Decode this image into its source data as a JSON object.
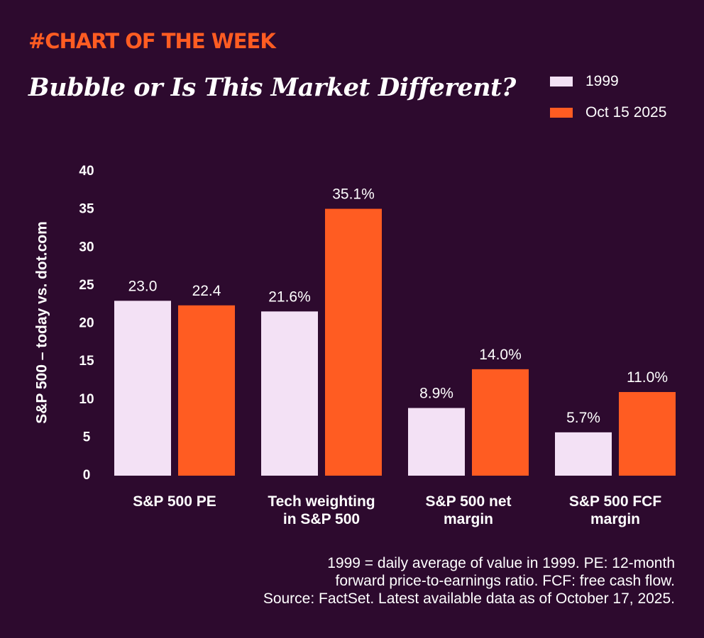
{
  "header": {
    "kicker": "#CHART OF THE WEEK"
  },
  "colors": {
    "background": "#2d0a2e",
    "series_1999": "#f3e1f5",
    "series_2025": "#ff5c22",
    "kicker": "#ff5c22"
  },
  "chart_data": {
    "type": "bar",
    "title": "Bubble or Is This Market Different?",
    "ylabel": "S&P 500 – today vs. dot.com",
    "xlabel": "",
    "ylim": [
      0,
      40
    ],
    "yticks": [
      0,
      5,
      10,
      15,
      20,
      25,
      30,
      35,
      40
    ],
    "grid": false,
    "legend_position": "top-right",
    "categories": [
      [
        "S&P 500 PE"
      ],
      [
        "Tech weighting",
        "in S&P 500"
      ],
      [
        "S&P 500 net",
        "margin"
      ],
      [
        "S&P 500 FCF",
        "margin"
      ]
    ],
    "series": [
      {
        "name": "1999",
        "color": "#f3e1f5",
        "values": [
          23.0,
          21.6,
          8.9,
          5.7
        ],
        "labels": [
          "23.0",
          "21.6%",
          "8.9%",
          "5.7%"
        ]
      },
      {
        "name": "Oct 15 2025",
        "color": "#ff5c22",
        "values": [
          22.4,
          35.1,
          14.0,
          11.0
        ],
        "labels": [
          "22.4",
          "35.1%",
          "14.0%",
          "11.0%"
        ]
      }
    ]
  },
  "footnote": {
    "lines": [
      "1999 = daily average of value in 1999. PE: 12-month",
      "forward price-to-earnings ratio. FCF: free cash flow.",
      "Source: FactSet. Latest available data as of October 17, 2025."
    ]
  }
}
